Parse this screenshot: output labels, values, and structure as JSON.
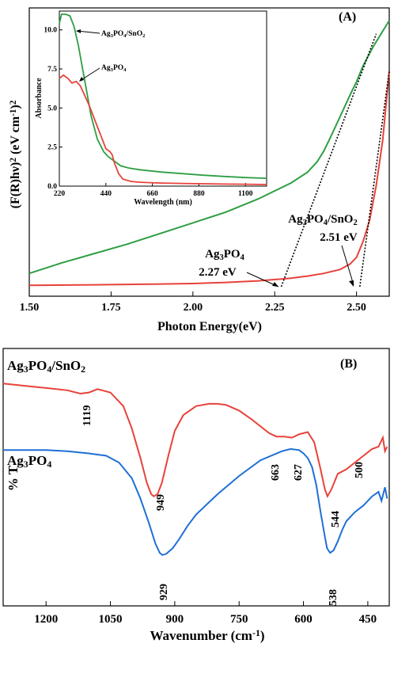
{
  "chart_data": [
    {
      "panel": "A",
      "type": "line",
      "panel_label": "(A)",
      "xlabel": "Photon Energy(eV)",
      "ylabel_parts": [
        "(F(R)hν)",
        "2",
        " (eV cm",
        "-1",
        ")",
        "2"
      ],
      "xlim": [
        1.5,
        2.6
      ],
      "xticks": [
        "1.50",
        "1.75",
        "2.00",
        "2.25",
        "2.50"
      ],
      "xtick_values": [
        1.5,
        1.75,
        2.0,
        2.25,
        2.5
      ],
      "ylim": [
        0,
        1
      ],
      "series": [
        {
          "color": "#2e9e44",
          "x": [
            1.5,
            1.6,
            1.7,
            1.8,
            1.9,
            2.0,
            2.1,
            2.2,
            2.3,
            2.35,
            2.38,
            2.4,
            2.42,
            2.45,
            2.48,
            2.5,
            2.52,
            2.55,
            2.58,
            2.6
          ],
          "y": [
            0.05,
            0.09,
            0.125,
            0.16,
            0.2,
            0.24,
            0.28,
            0.33,
            0.39,
            0.43,
            0.47,
            0.51,
            0.56,
            0.64,
            0.72,
            0.77,
            0.83,
            0.9,
            0.96,
            1.0
          ]
        },
        {
          "color": "#e8423b",
          "x": [
            1.5,
            1.7,
            1.9,
            2.0,
            2.1,
            2.2,
            2.3,
            2.35,
            2.4,
            2.45,
            2.48,
            2.5,
            2.52,
            2.54,
            2.56,
            2.58,
            2.6
          ],
          "y": [
            0.005,
            0.007,
            0.01,
            0.012,
            0.016,
            0.022,
            0.032,
            0.04,
            0.05,
            0.065,
            0.085,
            0.11,
            0.17,
            0.25,
            0.38,
            0.55,
            0.81
          ]
        }
      ],
      "tangent_lines": [
        {
          "x": [
            2.27,
            2.56
          ],
          "y": [
            0.0,
            0.95
          ]
        },
        {
          "x": [
            2.51,
            2.6
          ],
          "y": [
            0.0,
            0.81
          ]
        }
      ],
      "annotations": [
        {
          "name_parts": [
            "Ag",
            "3",
            "PO",
            "4"
          ],
          "value": "2.27 eV",
          "x": 2.27
        },
        {
          "name_parts": [
            "Ag",
            "3",
            "PO",
            "4",
            "/SnO",
            "2"
          ],
          "value": "2.51 eV",
          "x": 2.51
        }
      ],
      "inset": {
        "type": "line",
        "xlabel": "Wavelength (nm)",
        "ylabel": "Absorbance",
        "xlim": [
          220,
          1200
        ],
        "ylim": [
          0,
          11
        ],
        "xticks": [
          "220",
          "440",
          "660",
          "880",
          "1100"
        ],
        "xtick_values": [
          220,
          440,
          660,
          880,
          1100
        ],
        "yticks": [
          "0.0",
          "2.5",
          "5.0",
          "7.5",
          "10.0"
        ],
        "ytick_values": [
          0,
          2.5,
          5,
          7.5,
          10
        ],
        "series": [
          {
            "color": "#2e9e44",
            "x": [
              220,
              230,
              250,
              270,
              290,
              310,
              330,
              350,
              370,
              400,
              430,
              450,
              470,
              490,
              510,
              550,
              600,
              700,
              800,
              900,
              1000,
              1100,
              1200
            ],
            "y": [
              10.4,
              11.0,
              11.0,
              10.9,
              10.2,
              9.0,
              7.5,
              6.0,
              4.5,
              3.0,
              2.2,
              1.9,
              1.7,
              1.5,
              1.3,
              1.15,
              1.05,
              0.9,
              0.8,
              0.7,
              0.62,
              0.55,
              0.5
            ]
          },
          {
            "color": "#e8423b",
            "x": [
              220,
              240,
              260,
              280,
              300,
              320,
              340,
              360,
              380,
              400,
              420,
              440,
              460,
              470,
              480,
              500,
              520,
              560,
              600,
              700,
              800,
              900,
              1000,
              1100,
              1200
            ],
            "y": [
              6.9,
              7.1,
              6.9,
              6.6,
              6.7,
              6.4,
              5.8,
              5.2,
              4.5,
              3.8,
              3.1,
              2.4,
              2.2,
              2.0,
              1.5,
              0.8,
              0.45,
              0.3,
              0.25,
              0.2,
              0.17,
              0.15,
              0.13,
              0.12,
              0.1
            ]
          }
        ],
        "labels": [
          {
            "parts": [
              "Ag",
              "3",
              "PO",
              "4",
              "/SnO",
              "2"
            ]
          },
          {
            "parts": [
              "Ag",
              "3",
              "PO",
              "4"
            ]
          }
        ]
      }
    },
    {
      "panel": "B",
      "type": "line",
      "panel_label": "(B)",
      "xlabel_parts": [
        "Wavenumber (cm",
        "-1",
        ")"
      ],
      "ylabel": "% T",
      "xlim": [
        1300,
        400
      ],
      "xticks": [
        "1200",
        "1050",
        "900",
        "750",
        "600",
        "450"
      ],
      "xtick_values": [
        1200,
        1050,
        900,
        750,
        600,
        450
      ],
      "ylim": [
        0,
        1
      ],
      "series": [
        {
          "color": "#e8423b",
          "label_parts": [
            "Ag",
            "3",
            "PO",
            "4",
            "/SnO",
            "2"
          ],
          "x": [
            1300,
            1250,
            1200,
            1150,
            1120,
            1100,
            1080,
            1050,
            1020,
            1000,
            980,
            965,
            955,
            949,
            940,
            930,
            915,
            900,
            880,
            850,
            820,
            800,
            780,
            750,
            720,
            700,
            680,
            663,
            645,
            627,
            610,
            590,
            575,
            560,
            550,
            544,
            535,
            520,
            500,
            480,
            460,
            440,
            425,
            415,
            410,
            405
          ],
          "y": [
            0.88,
            0.87,
            0.86,
            0.85,
            0.835,
            0.84,
            0.855,
            0.84,
            0.78,
            0.68,
            0.55,
            0.44,
            0.39,
            0.38,
            0.39,
            0.44,
            0.56,
            0.67,
            0.74,
            0.78,
            0.79,
            0.79,
            0.785,
            0.76,
            0.72,
            0.69,
            0.66,
            0.645,
            0.645,
            0.64,
            0.655,
            0.665,
            0.62,
            0.5,
            0.41,
            0.38,
            0.41,
            0.48,
            0.5,
            0.53,
            0.56,
            0.59,
            0.6,
            0.64,
            0.58,
            0.6
          ]
        },
        {
          "color": "#1f6fd6",
          "label_parts": [
            "Ag",
            "3",
            "PO",
            "4"
          ],
          "x": [
            1300,
            1250,
            1200,
            1150,
            1100,
            1060,
            1030,
            1000,
            980,
            960,
            945,
            935,
            929,
            920,
            905,
            890,
            870,
            850,
            800,
            750,
            700,
            650,
            630,
            610,
            600,
            590,
            580,
            570,
            560,
            550,
            545,
            538,
            530,
            520,
            510,
            500,
            480,
            460,
            440,
            425,
            418,
            410,
            405
          ],
          "y": [
            0.585,
            0.585,
            0.585,
            0.58,
            0.57,
            0.56,
            0.53,
            0.46,
            0.37,
            0.26,
            0.17,
            0.13,
            0.12,
            0.125,
            0.15,
            0.19,
            0.25,
            0.3,
            0.39,
            0.47,
            0.54,
            0.58,
            0.59,
            0.585,
            0.57,
            0.55,
            0.51,
            0.43,
            0.31,
            0.2,
            0.15,
            0.13,
            0.14,
            0.18,
            0.23,
            0.27,
            0.31,
            0.34,
            0.38,
            0.4,
            0.36,
            0.42,
            0.37
          ]
        }
      ],
      "peak_labels": [
        {
          "text": "1119",
          "x": 1119,
          "series": 0
        },
        {
          "text": "949",
          "x": 949,
          "series": 0
        },
        {
          "text": "663",
          "x": 663,
          "series": 0
        },
        {
          "text": "627",
          "x": 627,
          "series": 0
        },
        {
          "text": "544",
          "x": 544,
          "series": 0
        },
        {
          "text": "500",
          "x": 500,
          "series": 0
        },
        {
          "text": "929",
          "x": 929,
          "series": 1
        },
        {
          "text": "538",
          "x": 538,
          "series": 1
        }
      ]
    }
  ]
}
